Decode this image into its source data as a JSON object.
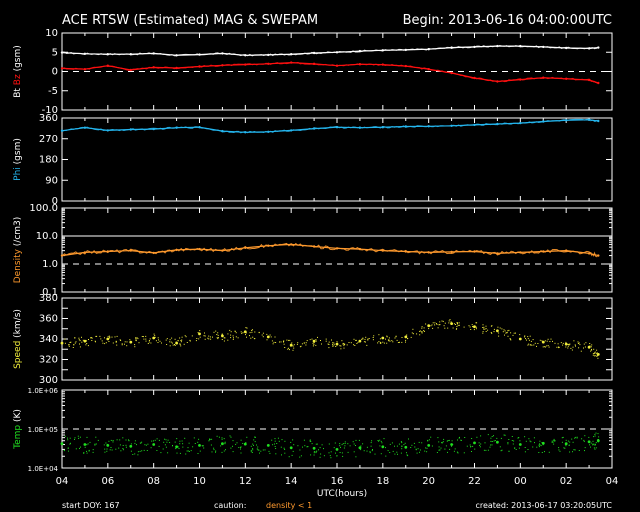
{
  "header": {
    "title": "ACE RTSW (Estimated) MAG & SWEPAM",
    "begin": "Begin: 2013-06-16 04:00:00UTC"
  },
  "footer": {
    "start_doy": "start DOY: 167",
    "caution": "caution:",
    "density_note": "density < 1",
    "created": "created: 2013-06-17 03:20:05UTC"
  },
  "colors": {
    "background": "#000000",
    "axes": "#ffffff",
    "bt": "#ffffff",
    "bz": "#ff1010",
    "phi": "#25b6ee",
    "density": "#ff9a2e",
    "speed": "#f2ee3c",
    "temp": "#20e020",
    "caution": "#ff9a2e"
  },
  "chart_data": [
    {
      "type": "line",
      "name": "mag",
      "ylabel_parts": [
        {
          "text": "Bt",
          "color": "#ffffff"
        },
        {
          "text": "  ",
          "color": "#ffffff"
        },
        {
          "text": "Bz",
          "color": "#ff1010"
        },
        {
          "text": " (gsm)",
          "color": "#ffffff"
        }
      ],
      "ylim": [
        -10,
        10
      ],
      "yscale": "linear",
      "yticks": [
        -10,
        -5,
        0,
        5,
        10
      ],
      "yticklabels": [
        "-10",
        "-5",
        "0",
        "5",
        "10"
      ],
      "dashed": [
        0
      ],
      "xlim": [
        0,
        24
      ],
      "x": [
        0,
        1,
        2,
        3,
        4,
        5,
        6,
        7,
        8,
        9,
        10,
        11,
        12,
        13,
        14,
        15,
        16,
        17,
        18,
        19,
        20,
        21,
        22,
        23,
        23.4
      ],
      "series": [
        {
          "name": "Bt",
          "color": "#ffffff",
          "style": "line",
          "values": [
            4.9,
            4.6,
            4.5,
            4.5,
            4.7,
            4.2,
            4.4,
            4.7,
            4.2,
            4.3,
            4.5,
            4.8,
            5.0,
            5.3,
            5.5,
            5.6,
            5.8,
            6.2,
            6.4,
            6.6,
            6.6,
            6.4,
            6.1,
            6.0,
            6.2
          ]
        },
        {
          "name": "Bz",
          "color": "#ff1010",
          "style": "line",
          "values": [
            0.8,
            0.6,
            1.5,
            0.4,
            1.1,
            0.9,
            1.3,
            1.6,
            1.8,
            2.0,
            2.3,
            2.0,
            1.5,
            1.9,
            1.8,
            1.4,
            0.6,
            -0.4,
            -1.7,
            -2.6,
            -2.1,
            -1.6,
            -1.9,
            -2.2,
            -3.0
          ]
        }
      ]
    },
    {
      "type": "line",
      "name": "phi",
      "ylabel_parts": [
        {
          "text": "Phi",
          "color": "#25b6ee"
        },
        {
          "text": " (gsm)",
          "color": "#ffffff"
        }
      ],
      "ylim": [
        0,
        360
      ],
      "yscale": "linear",
      "yticks": [
        0,
        90,
        180,
        270,
        360
      ],
      "yticklabels": [
        "0",
        "90",
        "180",
        "270",
        "360"
      ],
      "dashed": [],
      "xlim": [
        0,
        24
      ],
      "x": [
        0,
        1,
        2,
        3,
        4,
        5,
        6,
        7,
        8,
        9,
        10,
        11,
        12,
        13,
        14,
        15,
        16,
        17,
        18,
        19,
        20,
        21,
        22,
        23,
        23.4
      ],
      "series": [
        {
          "name": "Phi",
          "color": "#25b6ee",
          "style": "line",
          "values": [
            305,
            318,
            306,
            310,
            312,
            318,
            320,
            303,
            298,
            300,
            306,
            314,
            320,
            318,
            320,
            323,
            324,
            326,
            330,
            334,
            338,
            345,
            350,
            352,
            347
          ]
        }
      ]
    },
    {
      "type": "line",
      "name": "density",
      "ylabel_parts": [
        {
          "text": "Density",
          "color": "#ff9a2e"
        },
        {
          "text": " (/cm3)",
          "color": "#ffffff"
        }
      ],
      "ylim": [
        0.1,
        100
      ],
      "yscale": "log",
      "yticks": [
        0.1,
        1,
        10,
        100
      ],
      "yticklabels": [
        "0.1",
        "1.0",
        "10.0",
        "100.0"
      ],
      "dashed": [
        1
      ],
      "solid": [
        10
      ],
      "xlim": [
        0,
        24
      ],
      "x": [
        0,
        1,
        2,
        3,
        4,
        5,
        6,
        7,
        8,
        9,
        10,
        11,
        12,
        13,
        14,
        15,
        16,
        17,
        18,
        19,
        20,
        21,
        22,
        23,
        23.4
      ],
      "series": [
        {
          "name": "Density",
          "color": "#ff9a2e",
          "style": "line",
          "values": [
            2.0,
            2.6,
            2.8,
            3.0,
            2.5,
            3.2,
            3.4,
            3.0,
            3.8,
            4.5,
            5.0,
            4.2,
            3.6,
            3.4,
            3.0,
            2.8,
            2.6,
            2.7,
            2.8,
            2.4,
            2.6,
            2.8,
            3.0,
            2.4,
            2.0
          ]
        }
      ]
    },
    {
      "type": "scatter",
      "name": "speed",
      "ylabel_parts": [
        {
          "text": "Speed",
          "color": "#f2ee3c"
        },
        {
          "text": " (km/s)",
          "color": "#ffffff"
        }
      ],
      "ylim": [
        300,
        380
      ],
      "yscale": "linear",
      "yticks": [
        300,
        310,
        320,
        330,
        340,
        350,
        360,
        370,
        380
      ],
      "yticklabels": [
        "300",
        "",
        "320",
        "",
        "340",
        "",
        "360",
        "",
        "380"
      ],
      "dashed": [],
      "xlim": [
        0,
        24
      ],
      "x": [
        0,
        1,
        2,
        3,
        4,
        5,
        6,
        7,
        8,
        9,
        10,
        11,
        12,
        13,
        14,
        15,
        16,
        17,
        18,
        19,
        20,
        21,
        22,
        23,
        23.4
      ],
      "series": [
        {
          "name": "Speed",
          "color": "#f2ee3c",
          "style": "dots",
          "values": [
            336,
            338,
            340,
            337,
            341,
            336,
            345,
            343,
            347,
            342,
            334,
            338,
            335,
            338,
            341,
            342,
            353,
            355,
            352,
            348,
            340,
            337,
            335,
            332,
            325
          ]
        }
      ]
    },
    {
      "type": "scatter",
      "name": "temp",
      "ylabel_parts": [
        {
          "text": "Temp",
          "color": "#20e020"
        },
        {
          "text": " (K)",
          "color": "#ffffff"
        }
      ],
      "ylim": [
        10000,
        1000000
      ],
      "yscale": "log",
      "yticks": [
        10000,
        100000,
        1000000
      ],
      "yticklabels": [
        "1.0E+04",
        "1.0E+05",
        "1.0E+06"
      ],
      "dashed": [
        100000
      ],
      "xlim": [
        0,
        24
      ],
      "x": [
        0,
        1,
        2,
        3,
        4,
        5,
        6,
        7,
        8,
        9,
        10,
        11,
        12,
        13,
        14,
        15,
        16,
        17,
        18,
        19,
        20,
        21,
        22,
        23,
        23.4
      ],
      "series": [
        {
          "name": "Temp",
          "color": "#20e020",
          "style": "dots",
          "values": [
            42000,
            40000,
            38000,
            36000,
            40000,
            35000,
            38000,
            42000,
            41000,
            38000,
            33000,
            32000,
            30000,
            33000,
            35000,
            34000,
            38000,
            40000,
            44000,
            46000,
            40000,
            43000,
            42000,
            47000,
            50000
          ]
        }
      ]
    }
  ],
  "xaxis": {
    "ticklabels": [
      "04",
      "06",
      "08",
      "10",
      "12",
      "14",
      "16",
      "18",
      "20",
      "22",
      "00",
      "02",
      "04"
    ],
    "label": "UTC(hours)"
  }
}
